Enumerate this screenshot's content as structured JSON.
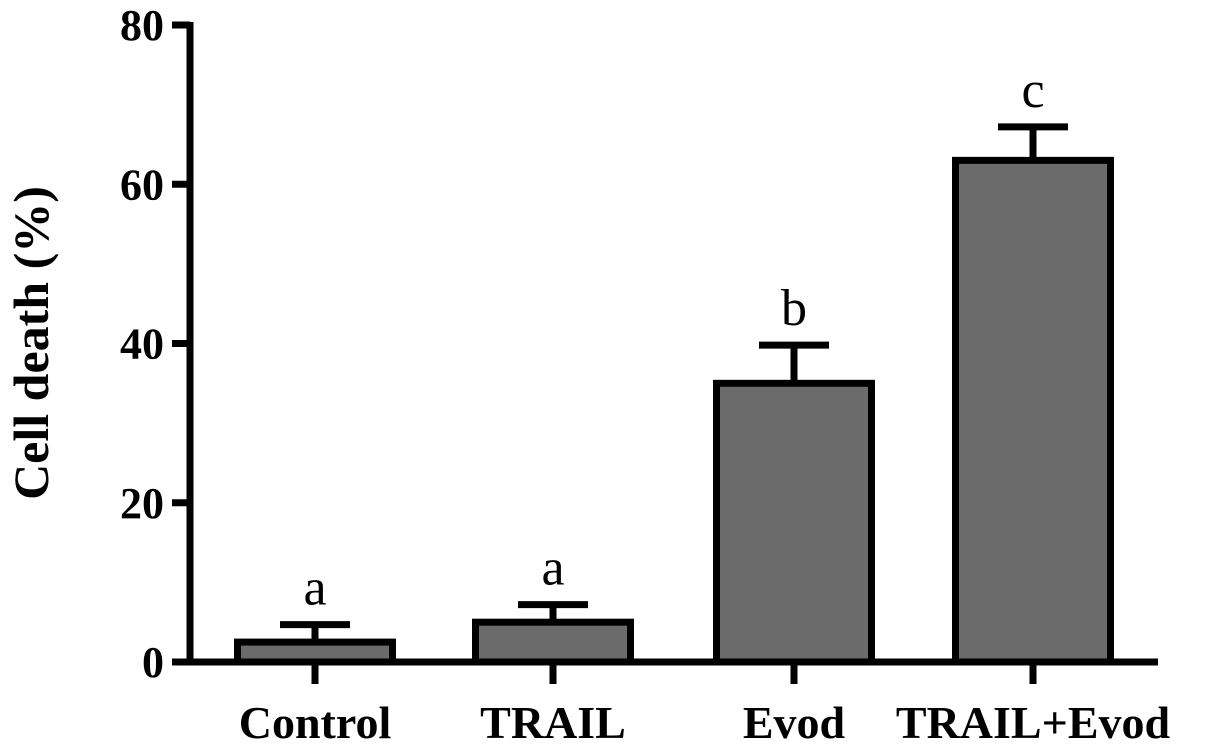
{
  "chart_data": {
    "type": "bar",
    "categories": [
      "Control",
      "TRAIL",
      "Evod",
      "TRAIL+Evod"
    ],
    "values": [
      2.5,
      5,
      35,
      63
    ],
    "errors": [
      2.2,
      2.2,
      4.8,
      4.2
    ],
    "significance_labels": [
      "a",
      "a",
      "b",
      "c"
    ],
    "xlabel": "",
    "ylabel": "Cell death (%)",
    "ylim": [
      0,
      80
    ],
    "yticks": [
      0,
      20,
      40,
      60,
      80
    ],
    "grid": false,
    "colors": {
      "bar_fill": "#6b6b6b",
      "bar_stroke": "#000000",
      "axis": "#000000"
    }
  }
}
